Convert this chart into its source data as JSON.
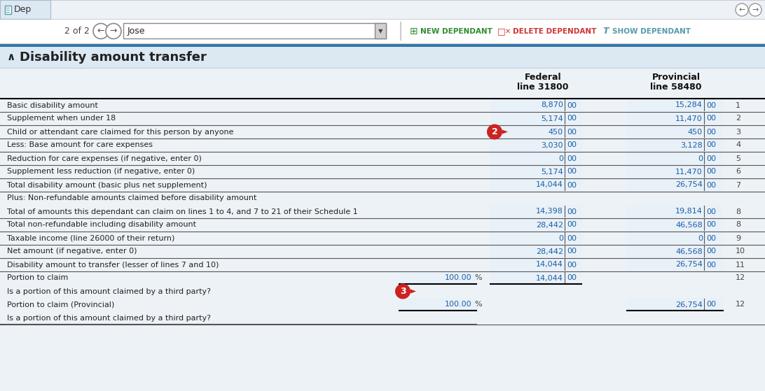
{
  "title_bar": "Dep",
  "nav_text": "2 of 2",
  "name_field": "Jose",
  "section_title": "Disability amount transfer",
  "bg_color": "#edf2f7",
  "content_bg": "#edf2f7",
  "white": "#ffffff",
  "tab_active_bg": "#dce8f2",
  "blue_bar": "#4488bb",
  "section_header_bg": "#dce8f2",
  "value_color": "#1a5fa8",
  "text_color": "#222222",
  "line_color": "#333333",
  "badge_red": "#cc2222",
  "green": "#2e8b2e",
  "red_btn": "#cc3333",
  "teal": "#5599aa",
  "row_configs": [
    [
      "Basic disability amount",
      "8,870",
      "15,284",
      "1",
      true,
      null,
      null,
      null
    ],
    [
      "Supplement when under 18",
      "5,174",
      "11,470",
      "2",
      true,
      null,
      null,
      null
    ],
    [
      "Child or attendant care claimed for this person by anyone",
      "450",
      "450",
      "3",
      true,
      "2",
      null,
      null
    ],
    [
      "Less: Base amount for care expenses",
      "3,030",
      "3,128",
      "4",
      true,
      null,
      null,
      null
    ],
    [
      "Reduction for care expenses (if negative, enter 0)",
      "0",
      "0",
      "5",
      true,
      null,
      null,
      null
    ],
    [
      "Supplement less reduction (if negative, enter 0)",
      "5,174",
      "11,470",
      "6",
      true,
      null,
      null,
      null
    ],
    [
      "Total disability amount (basic plus net supplement)",
      "14,044",
      "26,754",
      "7",
      true,
      null,
      null,
      null
    ],
    [
      "Plus: Non-refundable amounts claimed before disability amount",
      "",
      "",
      "",
      false,
      null,
      null,
      null
    ],
    [
      "Total of amounts this dependant can claim on lines 1 to 4, and 7 to 21 of their Schedule 1",
      "14,398",
      "19,814",
      "8",
      true,
      null,
      null,
      null
    ],
    [
      "Total non-refundable including disability amount",
      "28,442",
      "46,568",
      "8",
      true,
      null,
      null,
      null
    ],
    [
      "Taxable income (line 26000 of their return)",
      "0",
      "0",
      "9",
      true,
      null,
      null,
      null
    ],
    [
      "Net amount (if negative, enter 0)",
      "28,442",
      "46,568",
      "10",
      true,
      null,
      null,
      null
    ],
    [
      "Disability amount to transfer (lesser of lines 7 and 10)",
      "14,044",
      "26,754",
      "11",
      true,
      null,
      null,
      null
    ],
    [
      "Portion to claim",
      "14,044",
      "",
      "12",
      false,
      null,
      "100.00",
      null
    ],
    [
      "Is a portion of this amount claimed by a third party?",
      "",
      "",
      "",
      false,
      "3",
      null,
      null
    ],
    [
      "Portion to claim (Provincial)",
      "",
      "26,754",
      "12",
      false,
      null,
      null,
      "100.00"
    ],
    [
      "Is a portion of this amount claimed by a third party?",
      "",
      "",
      "",
      false,
      null,
      null,
      null
    ]
  ]
}
